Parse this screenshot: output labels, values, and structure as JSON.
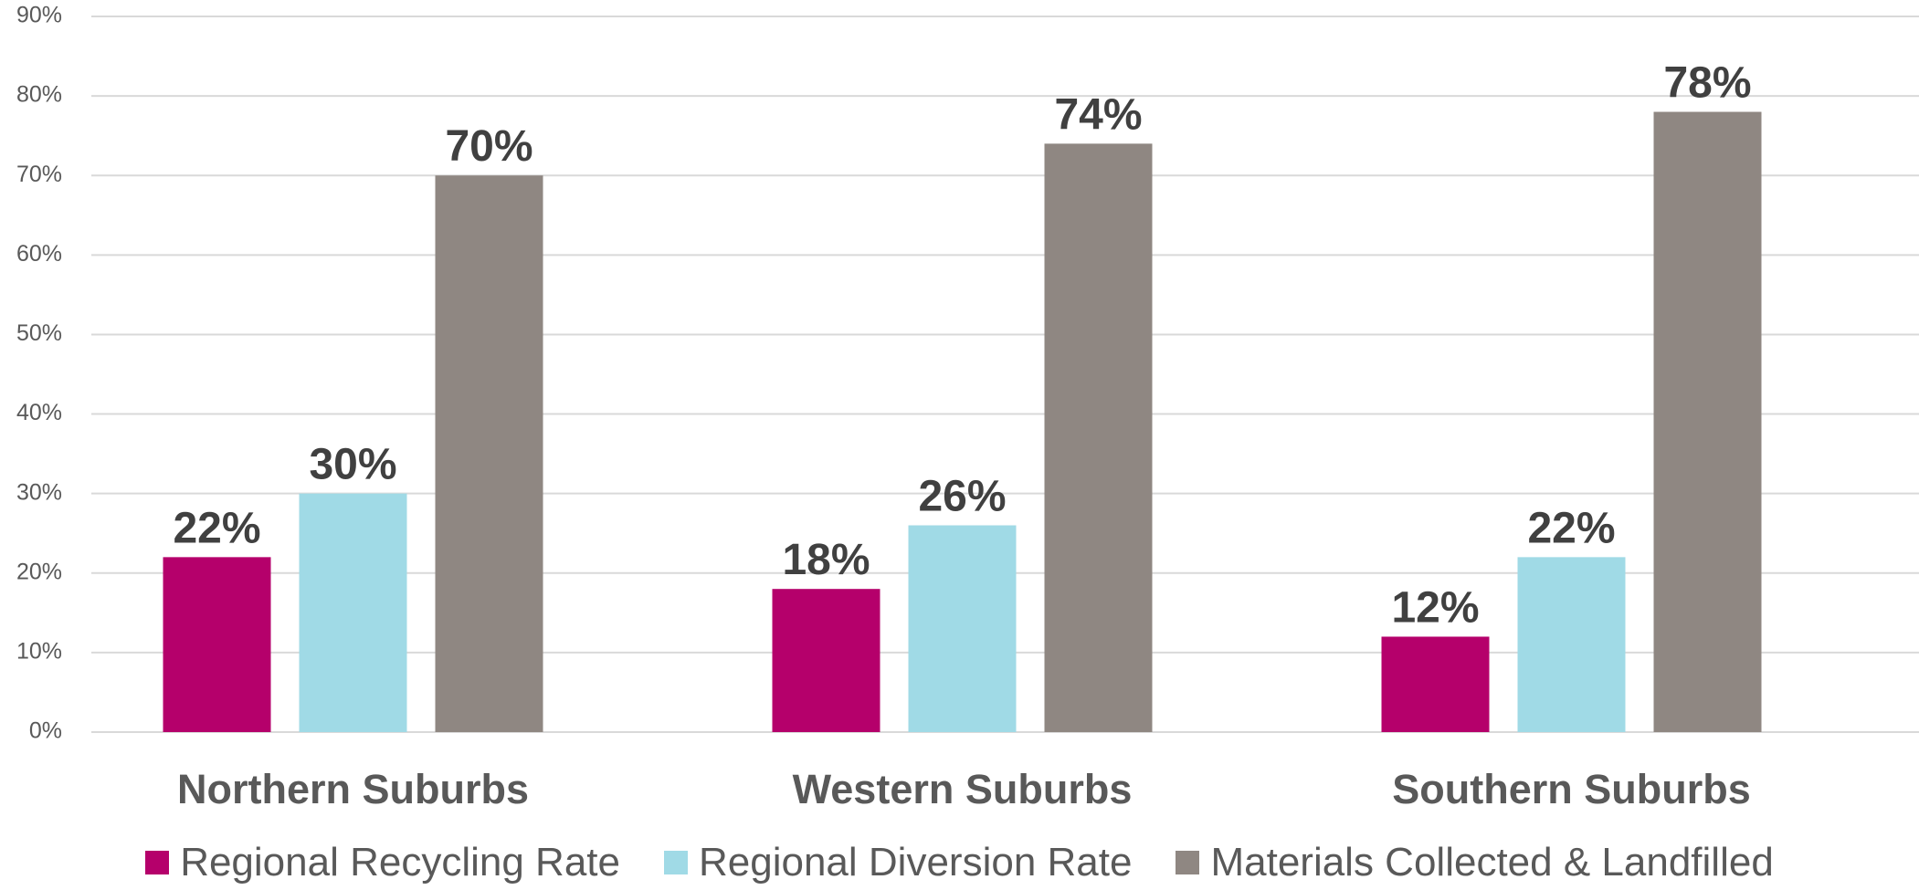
{
  "chart_data": {
    "type": "bar",
    "categories": [
      "Northern Suburbs",
      "Western Suburbs",
      "Southern Suburbs"
    ],
    "series": [
      {
        "name": "Regional Recycling Rate",
        "values": [
          22,
          18,
          12
        ],
        "color": "#B5006B"
      },
      {
        "name": "Regional Diversion Rate",
        "values": [
          30,
          26,
          22
        ],
        "color": "#A0DAE6"
      },
      {
        "name": "Materials Collected & Landfilled",
        "values": [
          70,
          74,
          78
        ],
        "color": "#8F8782"
      }
    ],
    "y_ticks": [
      "0%",
      "10%",
      "20%",
      "30%",
      "40%",
      "50%",
      "60%",
      "70%",
      "80%",
      "90%"
    ],
    "value_labels": [
      [
        "22%",
        "18%",
        "12%"
      ],
      [
        "30%",
        "26%",
        "22%"
      ],
      [
        "70%",
        "74%",
        "78%"
      ]
    ],
    "ylim": [
      0,
      90
    ],
    "grid": true,
    "legend_position": "bottom"
  }
}
